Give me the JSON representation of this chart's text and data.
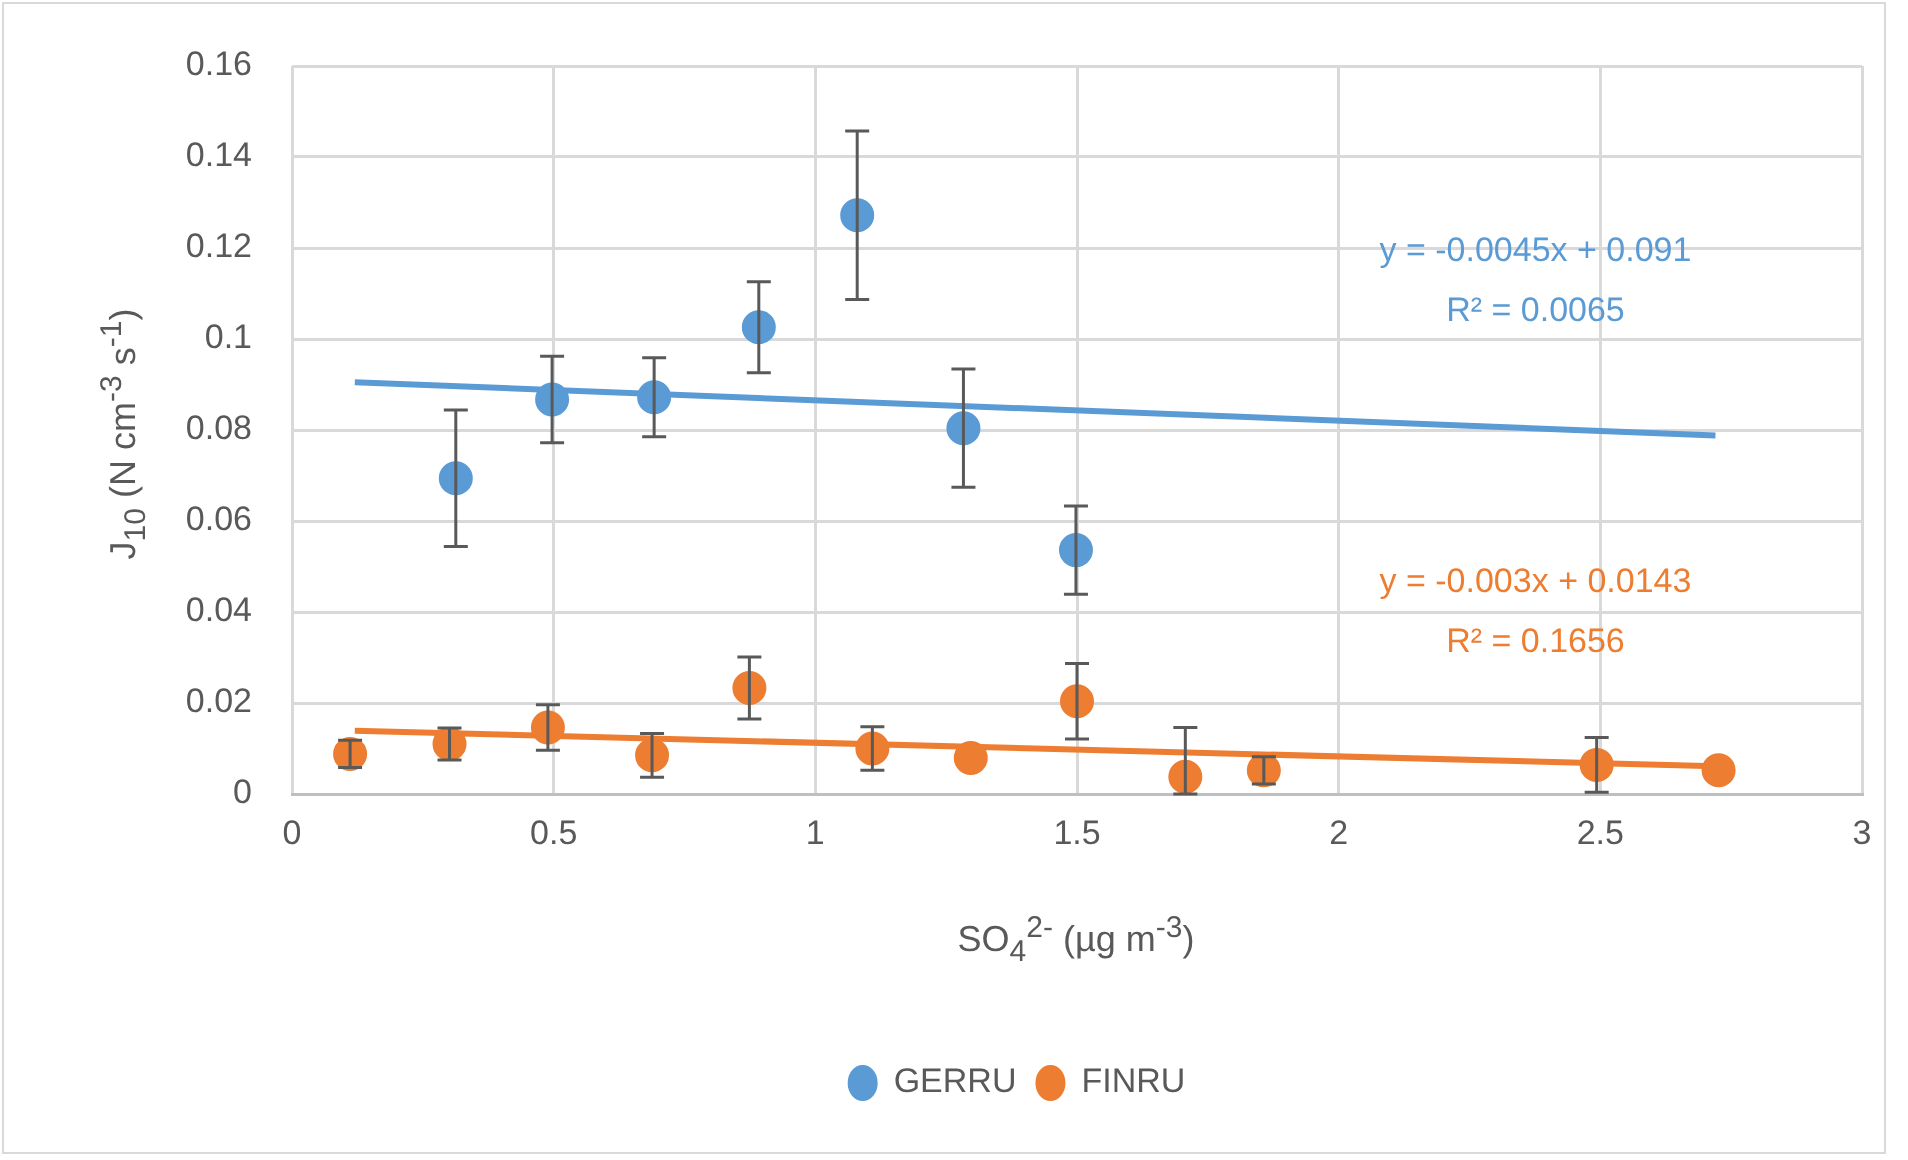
{
  "chart_data": {
    "type": "scatter",
    "xlabel": "SO$_{4}$$^{2-}$ (µg m$^{-3}$)",
    "ylabel": "J$_{10}$ (N cm$^{-3}$ s$^{-1}$)",
    "xlim": [
      0,
      3
    ],
    "xticks": [
      0,
      0.5,
      1,
      1.5,
      2,
      2.5,
      3
    ],
    "ylim": [
      0,
      0.16
    ],
    "yticks": [
      0,
      0.02,
      0.04,
      0.06,
      0.08,
      0.1,
      0.12,
      0.14,
      0.16
    ],
    "grid": true,
    "legend": "bottom",
    "marker": "circle",
    "series": [
      {
        "name": "GERRU",
        "color": "#5b9bd5",
        "x": [
          0.313,
          0.497,
          0.692,
          0.892,
          1.08,
          1.283,
          1.498
        ],
        "values": [
          0.0694,
          0.0867,
          0.0872,
          0.1026,
          0.1272,
          0.0804,
          0.0536
        ],
        "errors": [
          0.015,
          0.0095,
          0.0087,
          0.01,
          0.0185,
          0.013,
          0.0097
        ]
      },
      {
        "name": "FINRU",
        "color": "#ed7d31",
        "x": [
          0.111,
          0.301,
          0.489,
          0.688,
          0.874,
          1.109,
          1.297,
          1.5,
          1.707,
          1.857,
          2.493,
          2.726
        ],
        "values": [
          0.0088,
          0.011,
          0.0146,
          0.0085,
          0.0233,
          0.01,
          0.0079,
          0.0204,
          0.0038,
          0.0052,
          0.0064,
          0.0052
        ],
        "errors": [
          0.003,
          0.0035,
          0.005,
          0.0048,
          0.0068,
          0.0048,
          null,
          0.0083,
          [
            0,
            0.0146
          ],
          0.003,
          0.006,
          null
        ]
      },
      {
        "type": "line",
        "color": "#5b9bd5",
        "marker": "none",
        "line_style": "solid",
        "x": [
          0.12,
          2.72
        ],
        "values": [
          0.0905,
          0.0788
        ]
      },
      {
        "type": "line",
        "color": "#ed7d31",
        "marker": "none",
        "line_style": "solid",
        "x": [
          0.12,
          2.72
        ],
        "values": [
          0.0139,
          0.0061
        ]
      }
    ],
    "annotations": [
      "y = -0.0045x + 0.091",
      "R² = 0.0065",
      "y = -0.003x + 0.0143",
      "R² = 0.1656"
    ]
  }
}
